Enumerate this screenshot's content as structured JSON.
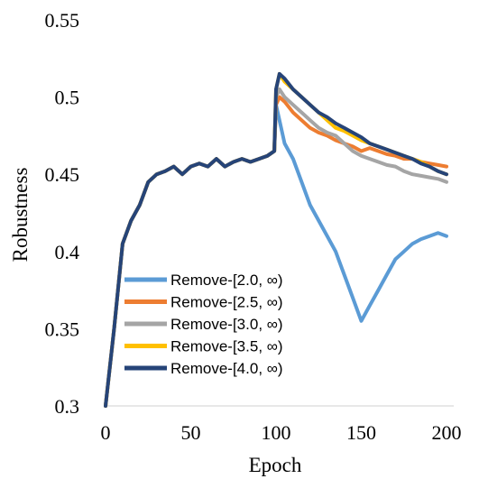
{
  "chart_data": {
    "type": "line",
    "title": "",
    "xlabel": "Epoch",
    "ylabel": "Robustness",
    "xlim": [
      0,
      200
    ],
    "ylim": [
      0.3,
      0.55
    ],
    "xticks": [
      0,
      50,
      100,
      150,
      200
    ],
    "xtick_labels": [
      "0",
      "50",
      "100",
      "150",
      "200"
    ],
    "yticks": [
      0.3,
      0.35,
      0.4,
      0.45,
      0.5,
      0.55
    ],
    "ytick_labels": [
      "0.3",
      "0.35",
      "0.4",
      "0.45",
      "0.5",
      "0.55"
    ],
    "grid": false,
    "legend_position": "bottom-left",
    "x": [
      0,
      5,
      10,
      15,
      20,
      25,
      30,
      35,
      40,
      45,
      50,
      55,
      60,
      65,
      70,
      75,
      80,
      85,
      90,
      95,
      99,
      100,
      102,
      105,
      110,
      115,
      120,
      125,
      130,
      135,
      140,
      145,
      150,
      155,
      160,
      165,
      170,
      175,
      180,
      185,
      190,
      195,
      200
    ],
    "series": [
      {
        "name": "Remove-[2.0, ∞)",
        "color": "#5B9BD5",
        "values": [
          0.3,
          0.35,
          0.405,
          0.42,
          0.43,
          0.445,
          0.45,
          0.452,
          0.455,
          0.45,
          0.455,
          0.457,
          0.455,
          0.46,
          0.455,
          0.458,
          0.46,
          0.458,
          0.46,
          0.462,
          0.465,
          0.495,
          0.485,
          0.47,
          0.46,
          0.445,
          0.43,
          0.42,
          0.41,
          0.4,
          0.385,
          0.37,
          0.355,
          0.365,
          0.375,
          0.385,
          0.395,
          0.4,
          0.405,
          0.408,
          0.41,
          0.412,
          0.41
        ]
      },
      {
        "name": "Remove-[2.5, ∞)",
        "color": "#ED7D31",
        "values": [
          0.3,
          0.35,
          0.405,
          0.42,
          0.43,
          0.445,
          0.45,
          0.452,
          0.455,
          0.45,
          0.455,
          0.457,
          0.455,
          0.46,
          0.455,
          0.458,
          0.46,
          0.458,
          0.46,
          0.462,
          0.465,
          0.495,
          0.5,
          0.497,
          0.49,
          0.485,
          0.48,
          0.477,
          0.475,
          0.472,
          0.47,
          0.468,
          0.465,
          0.467,
          0.465,
          0.463,
          0.462,
          0.46,
          0.46,
          0.458,
          0.457,
          0.456,
          0.455
        ]
      },
      {
        "name": "Remove-[3.0, ∞)",
        "color": "#A5A5A5",
        "values": [
          0.3,
          0.35,
          0.405,
          0.42,
          0.43,
          0.445,
          0.45,
          0.452,
          0.455,
          0.45,
          0.455,
          0.457,
          0.455,
          0.46,
          0.455,
          0.458,
          0.46,
          0.458,
          0.46,
          0.462,
          0.465,
          0.5,
          0.505,
          0.5,
          0.495,
          0.49,
          0.485,
          0.48,
          0.477,
          0.475,
          0.47,
          0.465,
          0.462,
          0.46,
          0.458,
          0.456,
          0.455,
          0.452,
          0.45,
          0.449,
          0.448,
          0.447,
          0.445
        ]
      },
      {
        "name": "Remove-[3.5, ∞)",
        "color": "#FFC000",
        "values": [
          0.3,
          0.35,
          0.405,
          0.42,
          0.43,
          0.445,
          0.45,
          0.452,
          0.455,
          0.45,
          0.455,
          0.457,
          0.455,
          0.46,
          0.455,
          0.458,
          0.46,
          0.458,
          0.46,
          0.462,
          0.465,
          0.505,
          0.515,
          0.51,
          0.505,
          0.5,
          0.495,
          0.49,
          0.485,
          0.48,
          0.478,
          0.475,
          0.472,
          0.47,
          0.468,
          0.466,
          0.464,
          0.462,
          0.46,
          0.458,
          0.455,
          0.452,
          0.45
        ]
      },
      {
        "name": "Remove-[4.0, ∞)",
        "color": "#264478",
        "values": [
          0.3,
          0.35,
          0.405,
          0.42,
          0.43,
          0.445,
          0.45,
          0.452,
          0.455,
          0.45,
          0.455,
          0.457,
          0.455,
          0.46,
          0.455,
          0.458,
          0.46,
          0.458,
          0.46,
          0.462,
          0.465,
          0.505,
          0.515,
          0.512,
          0.505,
          0.5,
          0.495,
          0.49,
          0.487,
          0.483,
          0.48,
          0.477,
          0.474,
          0.47,
          0.468,
          0.466,
          0.464,
          0.462,
          0.46,
          0.457,
          0.455,
          0.452,
          0.45
        ]
      }
    ]
  }
}
